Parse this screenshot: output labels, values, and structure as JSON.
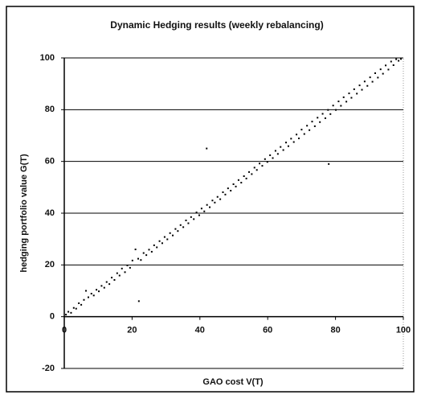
{
  "chart_data": {
    "type": "scatter",
    "title": "Dynamic Hedging results (weekly rebalancing)",
    "x_label": "GAO cost V(T)",
    "y_label": "hedging portfolio value G(T)",
    "xlim": [
      0,
      100
    ],
    "ylim": [
      -20,
      100
    ],
    "xticks": [
      0,
      20,
      40,
      60,
      80,
      100
    ],
    "yticks": [
      -20,
      0,
      20,
      40,
      60,
      80,
      100
    ],
    "grid": true,
    "color": "#000000",
    "x": [
      0.5,
      1.2,
      2,
      2.8,
      3.5,
      4.3,
      5,
      5.8,
      6.4,
      7.1,
      8,
      8.7,
      9.5,
      10.2,
      11,
      11.8,
      12.5,
      13.3,
      14,
      14.8,
      15.6,
      16.3,
      17,
      17.9,
      18.6,
      19.4,
      20.1,
      21,
      21.8,
      22,
      22.6,
      23.4,
      24.2,
      25,
      25.8,
      26.5,
      27.3,
      28.1,
      28.9,
      29.6,
      30.4,
      31.2,
      32,
      32.8,
      33.5,
      34.3,
      35.1,
      35.9,
      36.6,
      37.4,
      38.2,
      39,
      39.8,
      40.5,
      41.3,
      42,
      42.1,
      42.9,
      43.7,
      44.4,
      45.2,
      46,
      46.8,
      47.5,
      48.3,
      49.1,
      49.9,
      50.6,
      51.4,
      52.2,
      53,
      53.7,
      54.5,
      55.3,
      56.1,
      56.8,
      57.6,
      58.4,
      59.2,
      59.9,
      60.7,
      61.5,
      62.3,
      63,
      63.8,
      64.6,
      65.4,
      66.1,
      66.9,
      67.7,
      68.5,
      69.2,
      70,
      70.8,
      71.6,
      72.3,
      73.1,
      73.9,
      74.7,
      75.4,
      76.2,
      77,
      77.8,
      78,
      78.5,
      79.3,
      80.1,
      80.9,
      81.6,
      82.4,
      83.2,
      84,
      84.7,
      85.5,
      86.3,
      87.1,
      87.8,
      88.6,
      89.4,
      90.2,
      90.9,
      91.7,
      92.5,
      93.3,
      94,
      94.8,
      95.6,
      96.4,
      97.1,
      97.9,
      98.6,
      99.3
    ],
    "y": [
      0.8,
      1.9,
      1.5,
      3.4,
      3.1,
      5.2,
      4.6,
      6.5,
      10,
      7.5,
      8.9,
      8.2,
      10.4,
      9.8,
      11.9,
      11.2,
      13.4,
      12.6,
      15.1,
      14.2,
      16.8,
      15.9,
      18.6,
      17.2,
      19.8,
      18.9,
      21.7,
      26,
      22.4,
      6,
      21.9,
      24.6,
      23.8,
      25.9,
      25.1,
      27.6,
      26.8,
      29.2,
      28.4,
      30.8,
      29.9,
      32.3,
      31.4,
      33.9,
      33.1,
      35.4,
      34.6,
      37.2,
      36.1,
      38.5,
      37.7,
      40.3,
      39.2,
      41.8,
      40.7,
      65,
      43.2,
      42.3,
      44.9,
      44.1,
      46.3,
      45.4,
      48.1,
      47.2,
      49.6,
      48.7,
      51.2,
      50.3,
      52.8,
      51.8,
      54.3,
      53.4,
      55.9,
      55.1,
      57.6,
      56.7,
      59.2,
      58.3,
      60.9,
      59.8,
      62.4,
      61.3,
      64.1,
      62.9,
      65.6,
      64.4,
      67.3,
      65.9,
      68.8,
      67.5,
      70.4,
      68.9,
      72.3,
      70.6,
      73.8,
      72.1,
      75.4,
      73.6,
      76.9,
      75.2,
      78.4,
      76.7,
      79.9,
      59,
      78.3,
      81.6,
      79.9,
      83.2,
      81.5,
      84.8,
      83.1,
      86.3,
      84.6,
      87.9,
      86.2,
      89.4,
      87.7,
      90.9,
      89.2,
      92.5,
      90.8,
      94.1,
      92.4,
      95.6,
      93.9,
      97.1,
      95.5,
      98.6,
      97.2,
      99.5,
      98.9,
      99.6
    ]
  }
}
